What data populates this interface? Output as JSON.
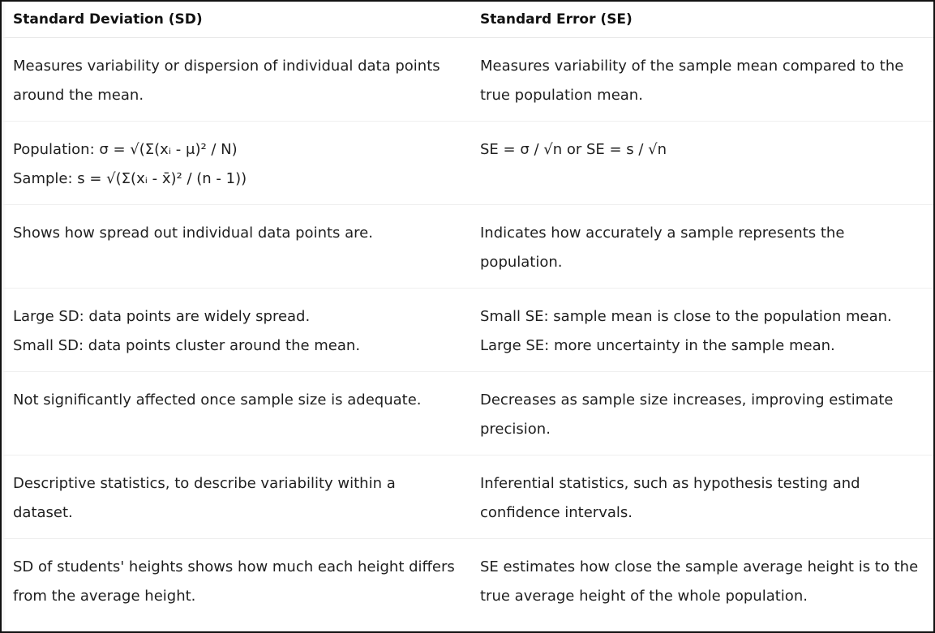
{
  "table": {
    "headers": [
      "Standard Deviation (SD)",
      "Standard Error (SE)"
    ],
    "rows": [
      {
        "sd": [
          "Measures variability or dispersion of individual data points around the mean."
        ],
        "se": [
          "Measures variability of the sample mean compared to the true population mean."
        ]
      },
      {
        "sd": [
          "Population: σ = √(Σ(xᵢ - μ)² / N)",
          "Sample: s = √(Σ(xᵢ - x̄)² / (n - 1))"
        ],
        "se": [
          "SE = σ / √n or SE = s / √n"
        ]
      },
      {
        "sd": [
          "Shows how spread out individual data points are."
        ],
        "se": [
          "Indicates how accurately a sample represents the population."
        ]
      },
      {
        "sd": [
          "Large SD: data points are widely spread.",
          "Small SD: data points cluster around the mean."
        ],
        "se": [
          "Small SE: sample mean is close to the population mean.",
          "Large SE: more uncertainty in the sample mean."
        ]
      },
      {
        "sd": [
          "Not significantly affected once sample size is adequate."
        ],
        "se": [
          "Decreases as sample size increases, improving estimate precision."
        ]
      },
      {
        "sd": [
          "Descriptive statistics, to describe variability within a dataset."
        ],
        "se": [
          "Inferential statistics, such as hypothesis testing and confidence intervals."
        ]
      },
      {
        "sd": [
          "SD of students' heights shows how much each height differs from the average height."
        ],
        "se": [
          "SE estimates how close the sample average height is to the true average height of the whole population."
        ]
      }
    ]
  }
}
